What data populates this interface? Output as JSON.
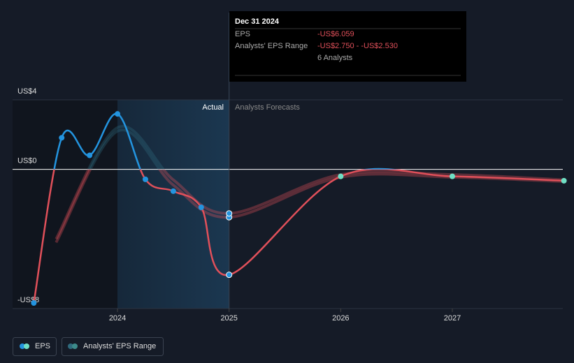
{
  "chart_data": {
    "type": "line",
    "xlim": [
      2023.06,
      2027.99
    ],
    "xticks": [
      {
        "value": 2024,
        "label": "2024"
      },
      {
        "value": 2025,
        "label": "2025"
      },
      {
        "value": 2026,
        "label": "2026"
      },
      {
        "value": 2027,
        "label": "2027"
      }
    ],
    "ylim": [
      -8,
      4
    ],
    "yticks": [
      {
        "value": 4,
        "label": "US$4"
      },
      {
        "value": 0,
        "label": "US$0"
      },
      {
        "value": -8,
        "label": "-US$8"
      }
    ],
    "annotations": [
      "Actual",
      "Analysts Forecasts"
    ],
    "series": [
      {
        "name": "EPS",
        "color": "#2394df",
        "negative_color": "#e0505a",
        "forecast_color": "#6fe0c5",
        "x": [
          2023.25,
          2023.5,
          2023.75,
          2024.0,
          2024.25,
          2024.5,
          2024.75,
          2025.0,
          2026.0,
          2027.0,
          2028.0
        ],
        "values": [
          -7.68,
          1.82,
          0.81,
          3.19,
          -0.57,
          -1.25,
          -2.18,
          -6.059,
          -0.4,
          -0.4,
          -0.65
        ]
      },
      {
        "name": "Analysts' EPS Range",
        "color": "#2f6a7d",
        "negative_color": "#e0505a",
        "x": [
          2023.45,
          2024.0,
          2024.5,
          2025.0,
          2026.0,
          2027.0,
          2028.0
        ],
        "low": [
          -4.2,
          2.2,
          -0.9,
          -2.75,
          -0.45,
          -0.45,
          -0.7
        ],
        "high": [
          -4.0,
          2.4,
          -0.6,
          -2.53,
          -0.3,
          -0.3,
          -0.6
        ]
      }
    ]
  },
  "tooltip": {
    "date": "Dec 31 2024",
    "rows": [
      [
        "EPS",
        "-US$6.059"
      ],
      [
        "Analysts' EPS Range",
        "-US$2.750 - -US$2.530"
      ],
      [
        "",
        "6 Analysts"
      ]
    ]
  }
}
